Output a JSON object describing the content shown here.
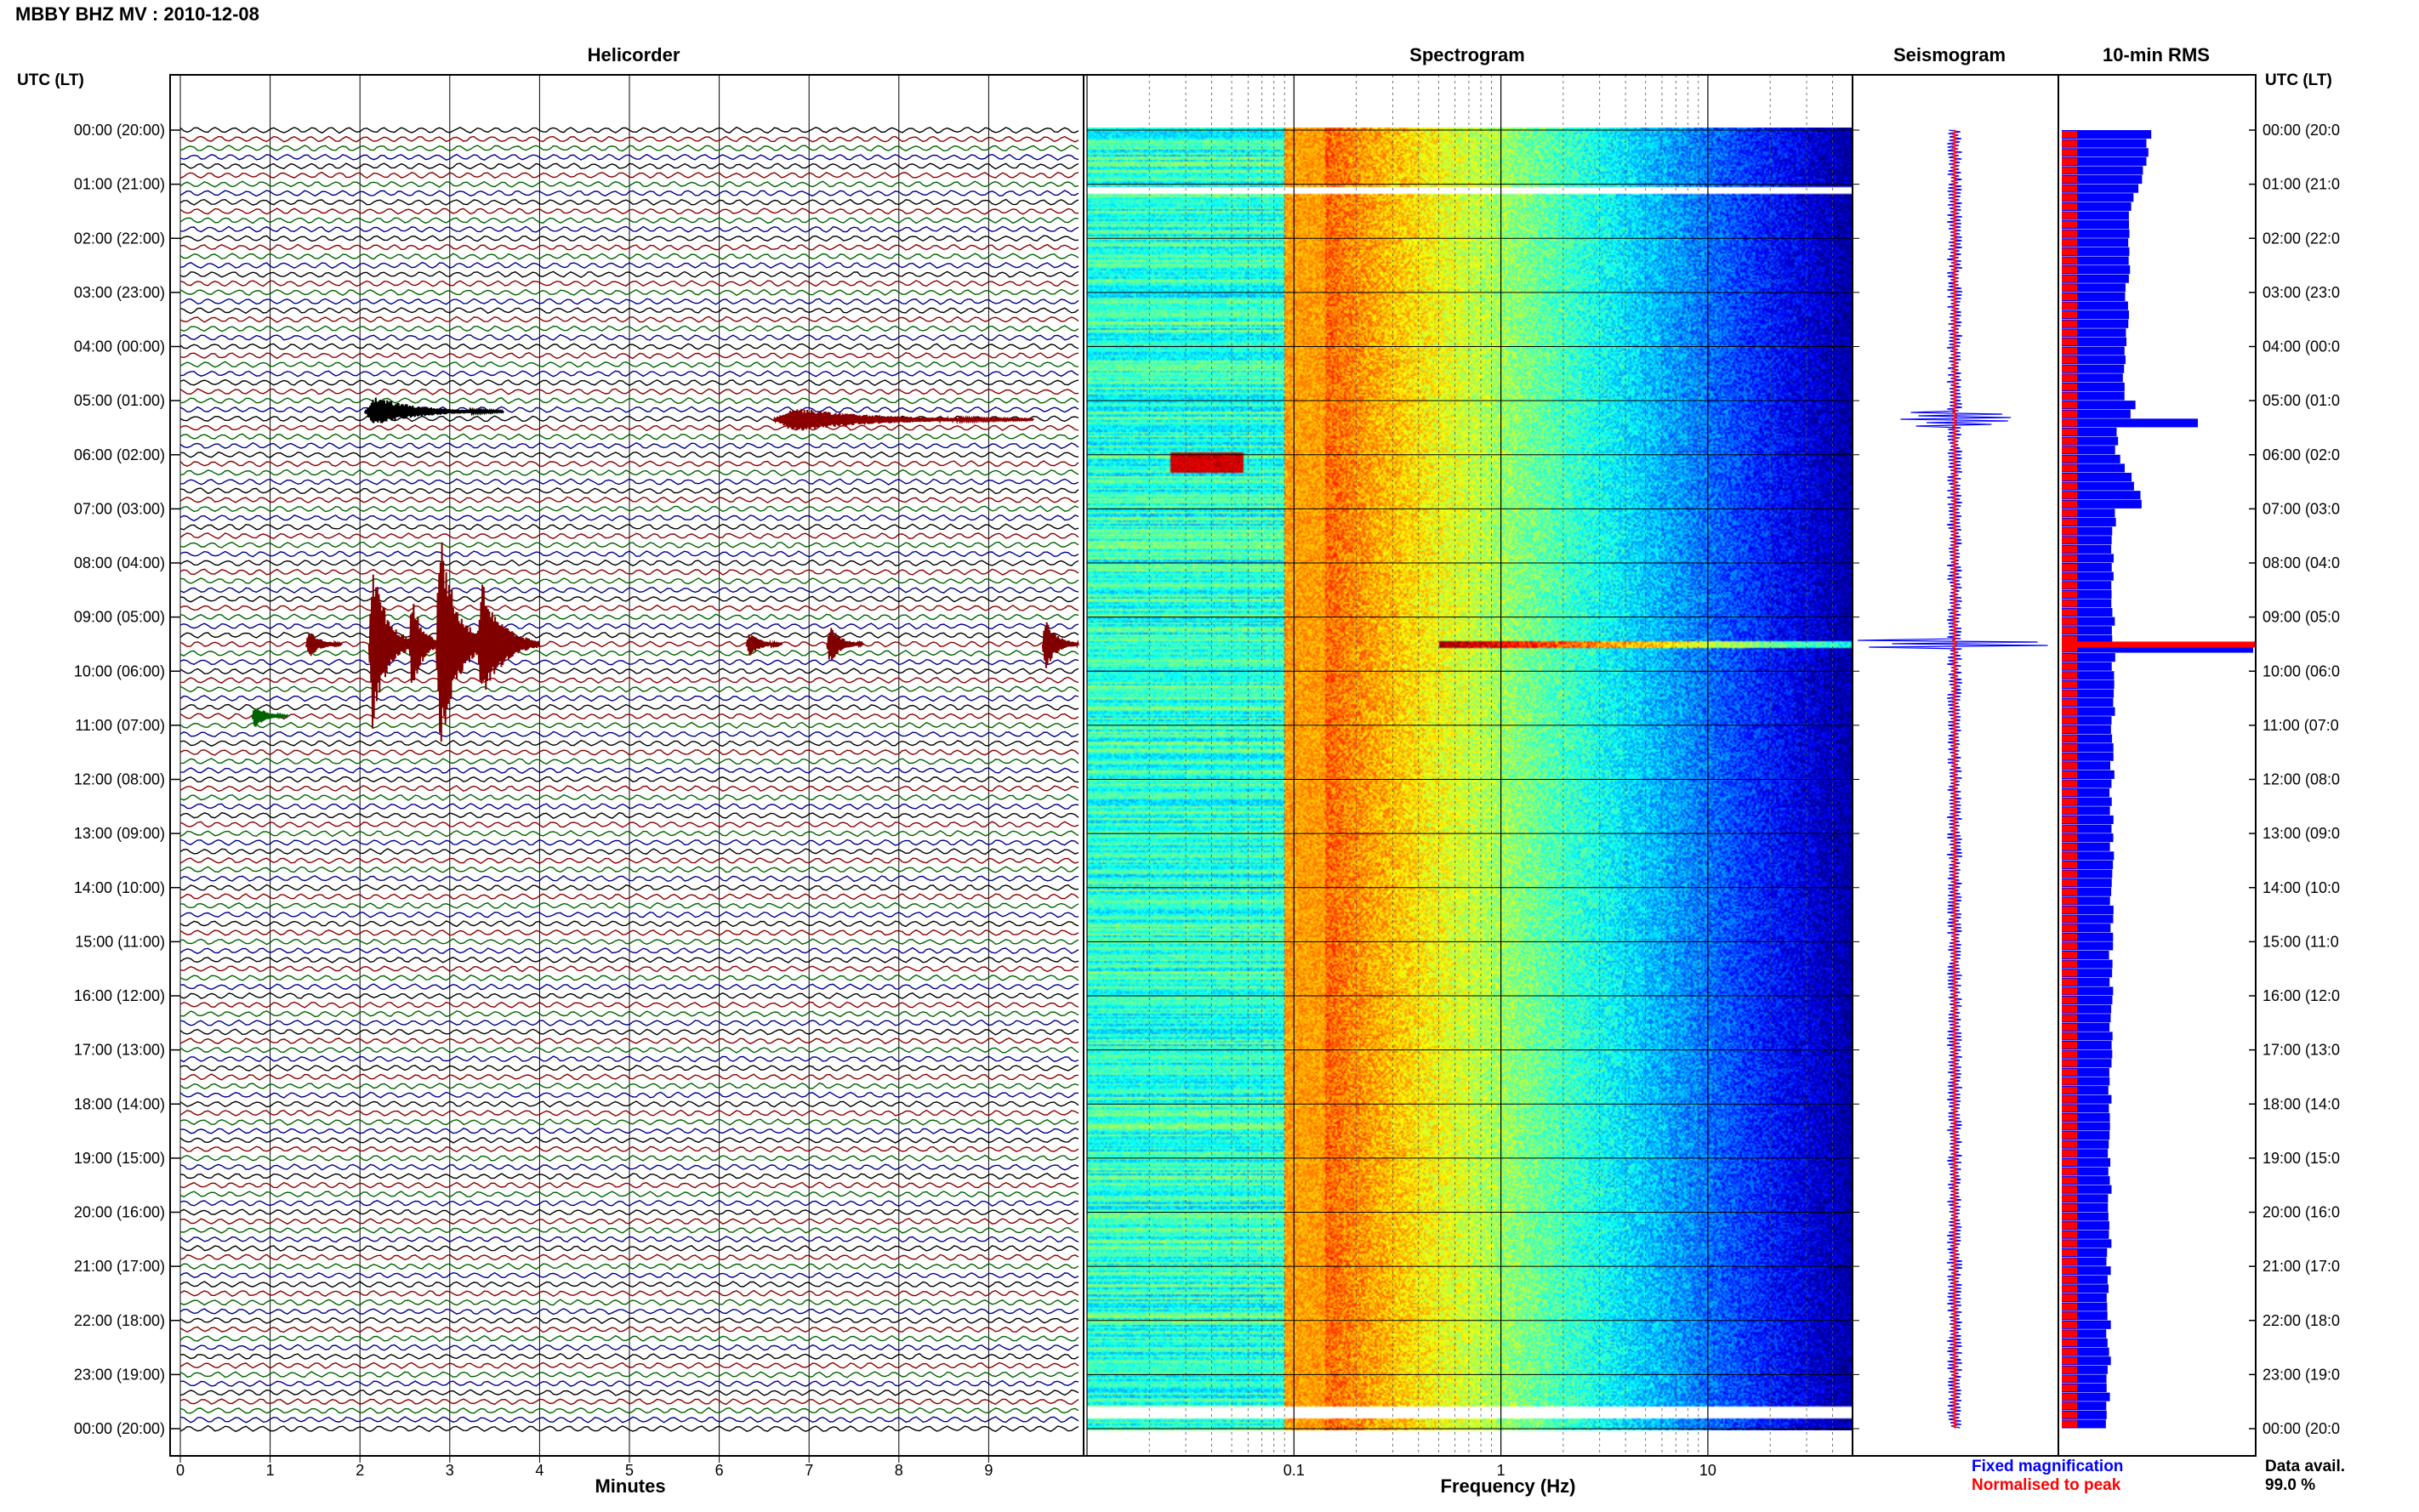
{
  "header": {
    "station_title": "MBBY BHZ MV : 2010-12-08",
    "left_axis_title": "UTC (LT)",
    "right_axis_title": "UTC (LT)"
  },
  "panels": {
    "helicorder": "Helicorder",
    "spectrogram": "Spectrogram",
    "seismogram": "Seismogram",
    "rms": "10-min RMS"
  },
  "footer": {
    "minutes_label": "Minutes",
    "frequency_label": "Frequency (Hz)",
    "fixed_magnification": "Fixed magnification",
    "normalised_to_peak": "Normalised to peak",
    "data_avail_label": "Data avail.",
    "data_avail_value": "99.0 %"
  },
  "colors": {
    "trace_cycle": [
      "#000000",
      "#8b0000",
      "#006400",
      "#00008b"
    ],
    "event_color": "#800000",
    "fixed_magnification": "#0000ff",
    "normalised_to_peak": "#ff0000",
    "spectrogram_low": "#00008b",
    "spectrogram_high": "#ffff00"
  },
  "chart_data": [
    {
      "type": "line",
      "panel": "helicorder",
      "xlabel": "Minutes",
      "ylabel": "UTC (LT)",
      "xlim": [
        0,
        10
      ],
      "xticks": [
        0,
        1,
        2,
        3,
        4,
        5,
        6,
        7,
        8,
        9
      ],
      "yticks": [
        "00:00 (20:00)",
        "01:00 (21:00)",
        "02:00 (22:00)",
        "03:00 (23:00)",
        "04:00 (00:00)",
        "05:00 (01:00)",
        "06:00 (02:00)",
        "07:00 (03:00)",
        "08:00 (04:00)",
        "09:00 (05:00)",
        "10:00 (06:00)",
        "11:00 (07:00)",
        "12:00 (08:00)",
        "13:00 (09:00)",
        "14:00 (10:00)",
        "15:00 (11:00)",
        "16:00 (12:00)",
        "17:00 (13:00)",
        "18:00 (14:00)",
        "19:00 (15:00)",
        "20:00 (16:00)",
        "21:00 (17:00)",
        "22:00 (18:00)",
        "23:00 (19:00)",
        "00:00 (20:00)"
      ],
      "right_yticks": [
        "00:00 (20:0",
        "01:00 (21:0",
        "02:00 (22:0",
        "03:00 (23:0",
        "04:00 (00:0",
        "05:00 (01:0",
        "06:00 (02:0",
        "07:00 (03:0",
        "08:00 (04:0",
        "09:00 (05:0",
        "10:00 (06:0",
        "11:00 (07:0",
        "12:00 (08:0",
        "13:00 (09:0",
        "14:00 (10:0",
        "15:00 (11:0",
        "16:00 (12:0",
        "17:00 (13:0",
        "18:00 (14:0",
        "19:00 (15:0",
        "20:00 (16:0",
        "21:00 (17:0",
        "22:00 (18:0",
        "23:00 (19:0",
        "00:00 (20:0"
      ],
      "lines_per_hour": 6,
      "events": [
        {
          "hour": 5.2,
          "start_min": 2.05,
          "end_min": 3.6,
          "amp": 0.6,
          "color": "#000000"
        },
        {
          "hour": 5.35,
          "start_min": 6.6,
          "end_min": 9.5,
          "amp": 0.5,
          "color": "#8b0000"
        },
        {
          "hour": 9.5,
          "start_min": 2.1,
          "end_min": 2.6,
          "amp": 3.5,
          "color": "#800000"
        },
        {
          "hour": 9.5,
          "start_min": 2.55,
          "end_min": 2.9,
          "amp": 2.2,
          "color": "#800000"
        },
        {
          "hour": 9.5,
          "start_min": 2.85,
          "end_min": 3.4,
          "amp": 5.0,
          "color": "#800000"
        },
        {
          "hour": 9.5,
          "start_min": 3.3,
          "end_min": 4.0,
          "amp": 2.6,
          "color": "#800000"
        },
        {
          "hour": 9.5,
          "start_min": 1.4,
          "end_min": 1.8,
          "amp": 0.6,
          "color": "#800000"
        },
        {
          "hour": 9.5,
          "start_min": 6.3,
          "end_min": 6.7,
          "amp": 0.5,
          "color": "#800000"
        },
        {
          "hour": 9.5,
          "start_min": 7.2,
          "end_min": 7.6,
          "amp": 0.8,
          "color": "#800000"
        },
        {
          "hour": 9.5,
          "start_min": 9.6,
          "end_min": 10.0,
          "amp": 1.1,
          "color": "#800000"
        },
        {
          "hour": 10.83,
          "start_min": 0.8,
          "end_min": 1.2,
          "amp": 0.5,
          "color": "#006400"
        }
      ]
    },
    {
      "type": "heatmap",
      "panel": "spectrogram",
      "xlabel": "Frequency (Hz)",
      "xscale": "log",
      "xlim": [
        0.01,
        50
      ],
      "xtick_labels": [
        "0.1",
        "1",
        "10"
      ],
      "ylim_hours": [
        0,
        24
      ]
    },
    {
      "type": "line",
      "panel": "seismogram",
      "series": [
        {
          "name": "Fixed magnification",
          "color": "#0000ff"
        },
        {
          "name": "Normalised to peak",
          "color": "#ff0000"
        }
      ]
    },
    {
      "type": "bar",
      "panel": "rms",
      "orientation": "horizontal",
      "bins_per_hour": 6,
      "spike_hour": 9.5,
      "series": [
        {
          "name": "Fixed magnification",
          "color": "#0000ff"
        },
        {
          "name": "Normalised to peak",
          "color": "#ff0000"
        }
      ]
    }
  ]
}
